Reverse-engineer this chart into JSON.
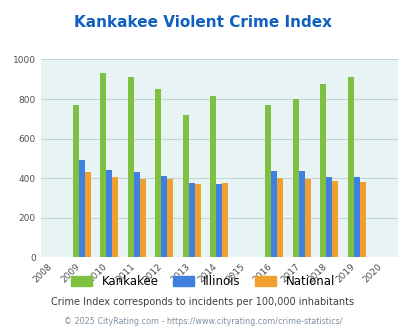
{
  "title": "Kankakee Violent Crime Index",
  "years": [
    2008,
    2009,
    2010,
    2011,
    2012,
    2013,
    2014,
    2015,
    2016,
    2017,
    2018,
    2019,
    2020
  ],
  "data_years": [
    2009,
    2010,
    2011,
    2012,
    2013,
    2014,
    2016,
    2017,
    2018,
    2019
  ],
  "kankakee": [
    770,
    930,
    910,
    850,
    720,
    815,
    770,
    800,
    875,
    910
  ],
  "illinois": [
    490,
    440,
    430,
    410,
    375,
    370,
    435,
    435,
    405,
    405
  ],
  "national": [
    430,
    405,
    395,
    395,
    370,
    375,
    400,
    395,
    385,
    380
  ],
  "color_kankakee": "#80c040",
  "color_illinois": "#4080e0",
  "color_national": "#f0a030",
  "bg_color": "#e8f4f4",
  "ylim": [
    0,
    1000
  ],
  "yticks": [
    0,
    200,
    400,
    600,
    800,
    1000
  ],
  "title_color": "#1060c0",
  "title_fontsize": 11,
  "footnote1": "Crime Index corresponds to incidents per 100,000 inhabitants",
  "footnote2": "© 2025 CityRating.com - https://www.cityrating.com/crime-statistics/",
  "footnote1_color": "#404040",
  "footnote2_color": "#8090a0",
  "bar_width": 0.22
}
